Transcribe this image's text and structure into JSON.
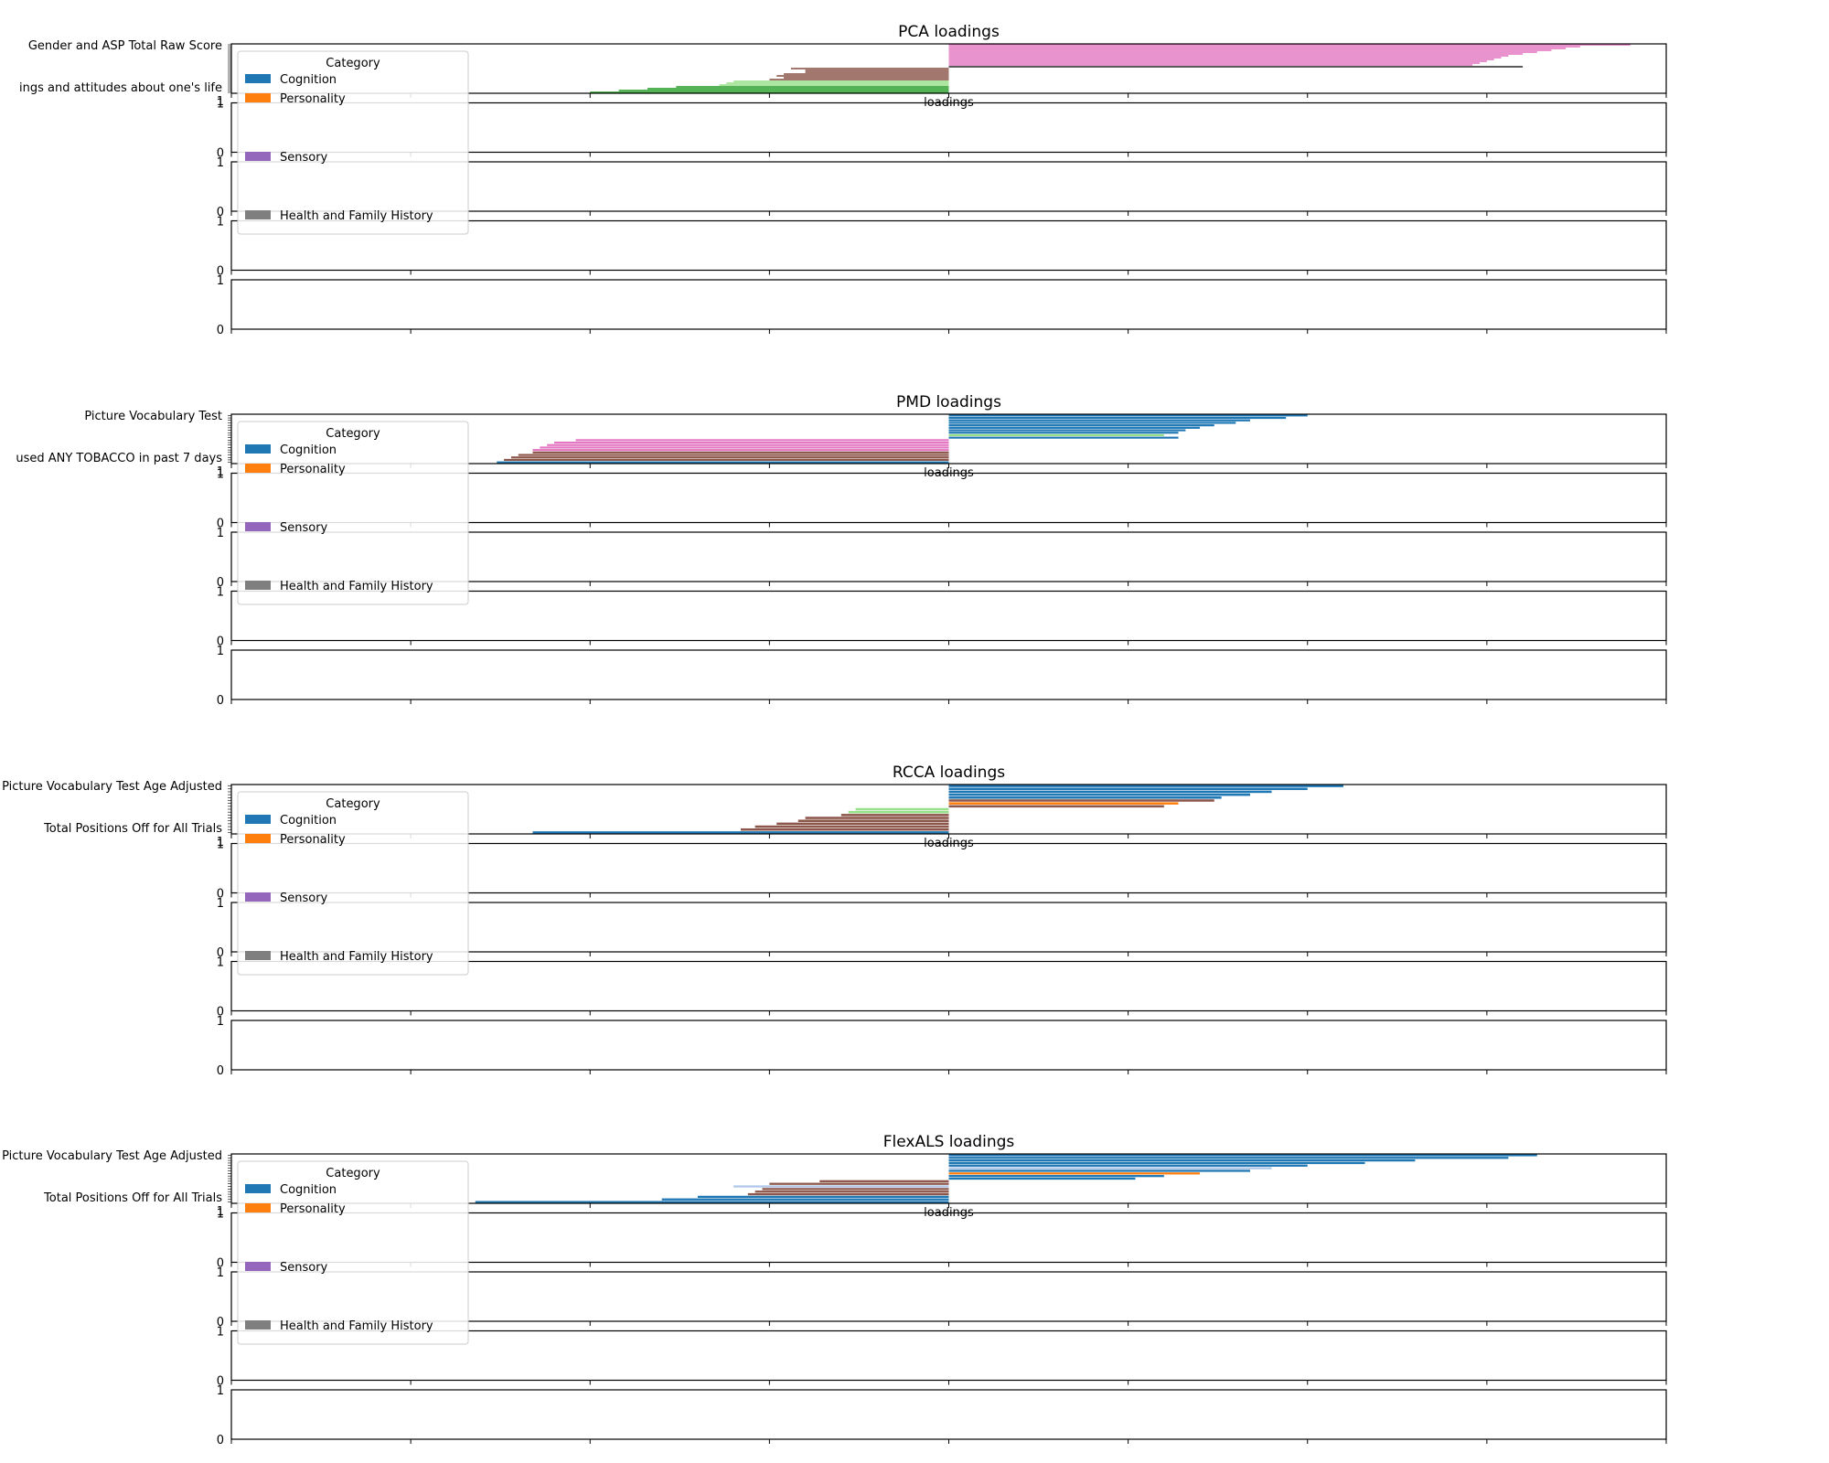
{
  "legend": {
    "title": "Category",
    "entries": [
      {
        "name": "Cognition",
        "color": "#1f77b4"
      },
      {
        "name": "Personality",
        "color": "#ff7f0e"
      },
      {
        "name": "Sensory",
        "color": "#9467bd"
      },
      {
        "name": "Health and Family History",
        "color": "#7f7f7f"
      }
    ]
  },
  "palette": {
    "cognition": "#1f77b4",
    "personality": "#ff7f0e",
    "green": "#2ca02c",
    "light_green": "#98df8a",
    "brown": "#8c564b",
    "pink": "#e377c2",
    "gray": "#7f7f7f",
    "light_blue": "#aec7e8",
    "olive": "#bcbd22",
    "dark": "#333333"
  },
  "empty_axis_ticks": [
    "0",
    "1"
  ],
  "chart_data": [
    {
      "type": "bar",
      "orientation": "horizontal",
      "title": "PCA loadings",
      "xlabel": "loadings",
      "xlim": [
        -1,
        1
      ],
      "empty_subplots": 4,
      "visible_labels": [
        "Gender and ASP Total Raw Score",
        "ings and attitudes about one's life"
      ],
      "series": [
        {
          "c": "pink",
          "v": [
            0.95,
            0.88,
            0.86,
            0.84,
            0.82,
            0.8,
            0.78,
            0.77,
            0.76,
            0.75,
            0.74,
            0.73
          ]
        },
        {
          "c": "dark",
          "v": [
            0.8
          ]
        },
        {
          "c": "brown",
          "v": [
            -0.22,
            -0.2,
            -0.2,
            -0.23,
            -0.24,
            -0.23,
            -0.25
          ]
        },
        {
          "c": "light_green",
          "v": [
            -0.3,
            -0.31,
            -0.32
          ]
        },
        {
          "c": "green",
          "v": [
            -0.38,
            -0.42,
            -0.46,
            -0.5
          ]
        }
      ]
    },
    {
      "type": "bar",
      "orientation": "horizontal",
      "title": "PMD loadings",
      "xlabel": "loadings",
      "xlim": [
        -1,
        1
      ],
      "empty_subplots": 4,
      "visible_labels": [
        "Picture Vocabulary Test",
        "used ANY TOBACCO in past 7 days"
      ],
      "series": [
        {
          "c": "cognition",
          "v": [
            0.5,
            0.47,
            0.42,
            0.4,
            0.37,
            0.35,
            0.33,
            0.32
          ]
        },
        {
          "c": "light_green",
          "v": [
            0.3
          ]
        },
        {
          "c": "cognition",
          "v": [
            0.32
          ]
        },
        {
          "c": "pink",
          "v": [
            -0.52,
            -0.55,
            -0.56,
            -0.57,
            -0.58
          ]
        },
        {
          "c": "brown",
          "v": [
            -0.58,
            -0.6,
            -0.61,
            -0.62
          ]
        },
        {
          "c": "cognition",
          "v": [
            -0.63
          ]
        }
      ]
    },
    {
      "type": "bar",
      "orientation": "horizontal",
      "title": "RCCA loadings",
      "xlabel": "loadings",
      "xlim": [
        -1,
        1
      ],
      "empty_subplots": 4,
      "visible_labels": [
        "Picture Vocabulary Test Age Adjusted",
        "Total Positions Off for All Trials"
      ],
      "series": [
        {
          "c": "cognition",
          "v": [
            0.55,
            0.5,
            0.45,
            0.42,
            0.38
          ]
        },
        {
          "c": "brown",
          "v": [
            0.37
          ]
        },
        {
          "c": "personality",
          "v": [
            0.32
          ]
        },
        {
          "c": "brown",
          "v": [
            0.3
          ]
        },
        {
          "c": "light_green",
          "v": [
            -0.13,
            -0.14
          ]
        },
        {
          "c": "brown",
          "v": [
            -0.15,
            -0.2,
            -0.21,
            -0.24,
            -0.27,
            -0.29
          ]
        },
        {
          "c": "cognition",
          "v": [
            -0.58
          ]
        }
      ]
    },
    {
      "type": "bar",
      "orientation": "horizontal",
      "title": "FlexALS loadings",
      "xlabel": "loadings",
      "xlim": [
        -1,
        1
      ],
      "empty_subplots": 4,
      "visible_labels": [
        "Picture Vocabulary Test Age Adjusted",
        "Total Positions Off for All Trials"
      ],
      "series": [
        {
          "c": "cognition",
          "v": [
            0.82,
            0.78,
            0.65,
            0.58,
            0.5
          ]
        },
        {
          "c": "light_blue",
          "v": [
            0.45
          ]
        },
        {
          "c": "cognition",
          "v": [
            0.42
          ]
        },
        {
          "c": "personality",
          "v": [
            0.35
          ]
        },
        {
          "c": "cognition",
          "v": [
            0.3,
            0.26
          ]
        },
        {
          "c": "brown",
          "v": [
            -0.18,
            -0.25
          ]
        },
        {
          "c": "light_blue",
          "v": [
            -0.3
          ]
        },
        {
          "c": "brown",
          "v": [
            -0.26,
            -0.27,
            -0.28
          ]
        },
        {
          "c": "cognition",
          "v": [
            -0.35,
            -0.4,
            -0.66
          ]
        }
      ]
    }
  ]
}
